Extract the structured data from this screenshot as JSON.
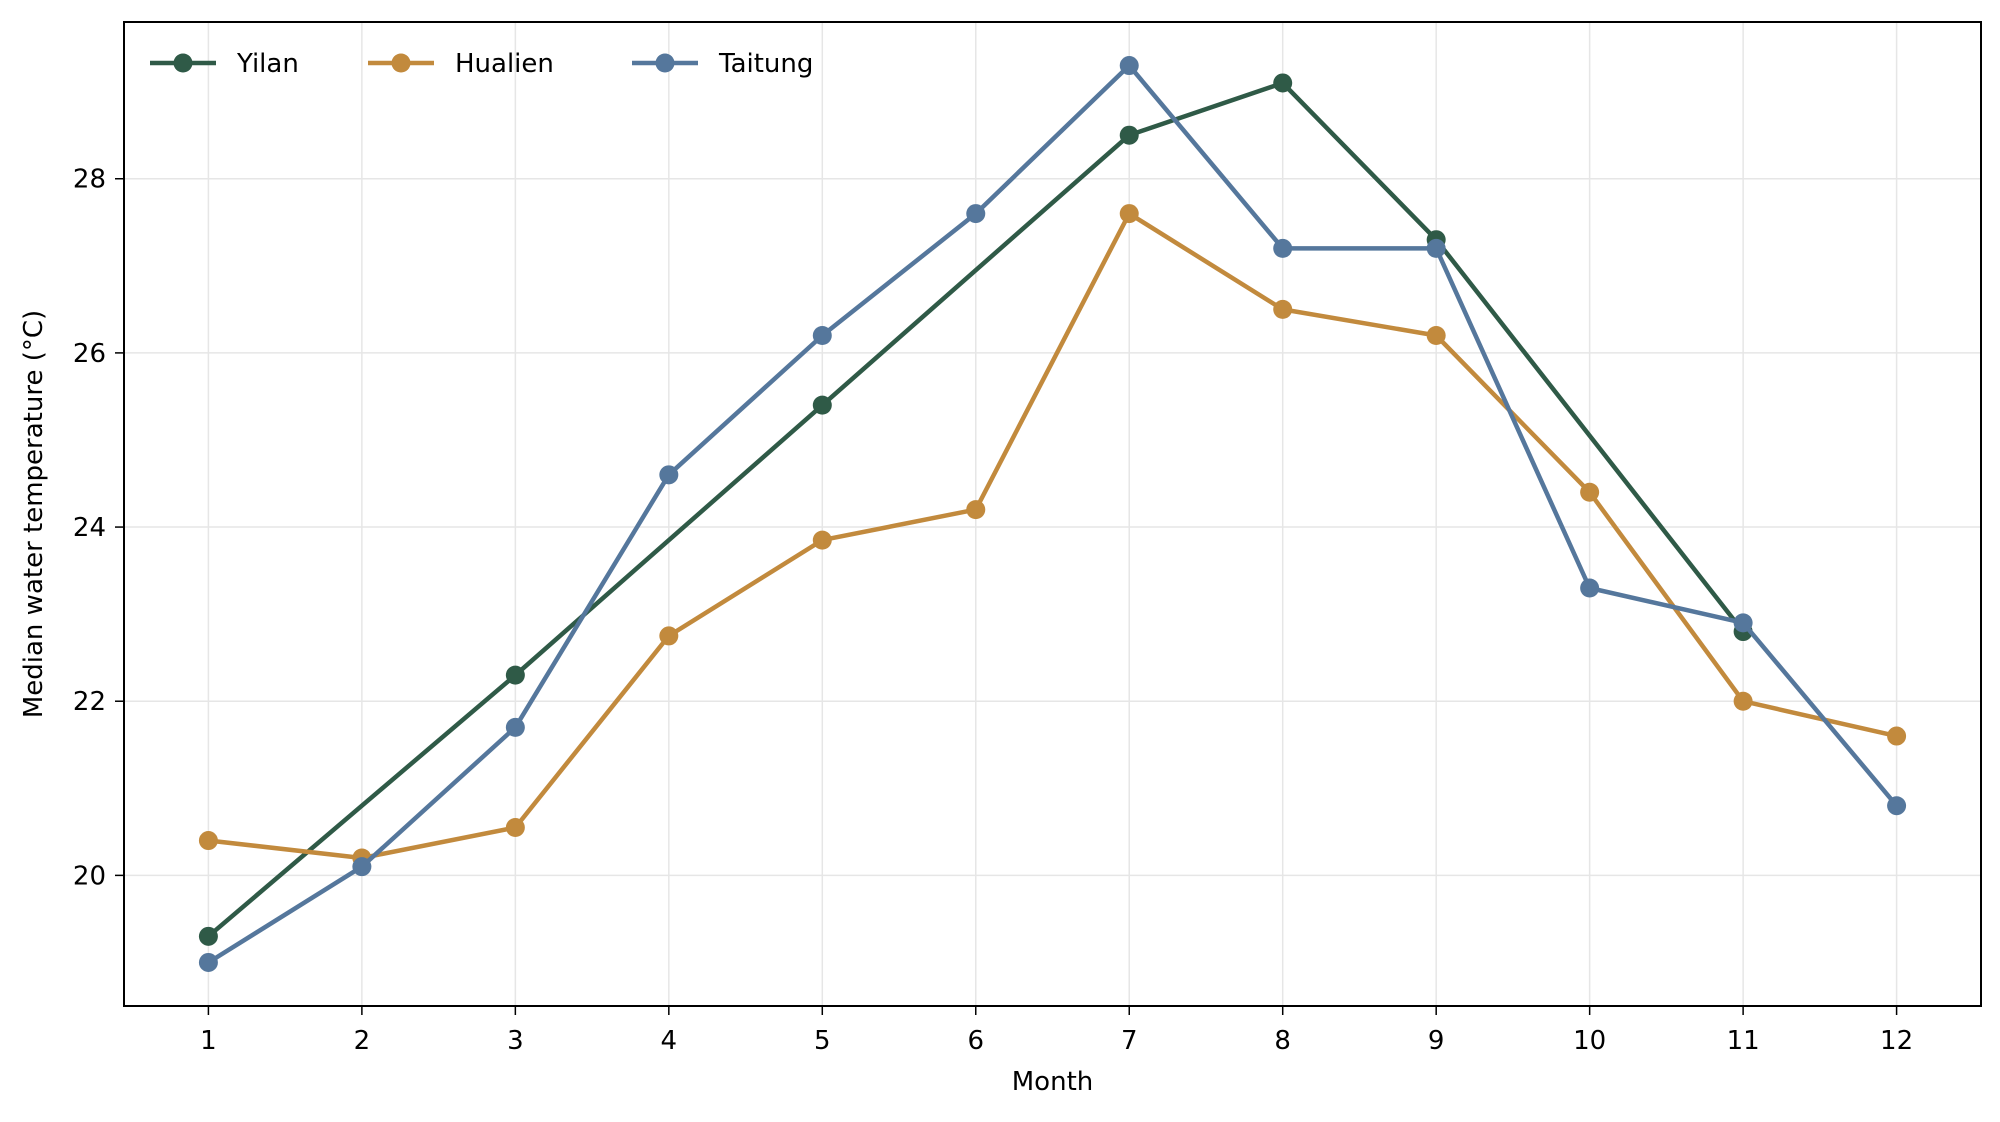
{
  "chart_data": {
    "type": "line",
    "title": "",
    "xlabel": "Month",
    "ylabel": "Median water temperature (°C)",
    "x": [
      1,
      2,
      3,
      4,
      5,
      6,
      7,
      8,
      9,
      10,
      11,
      12
    ],
    "x_ticks": [
      "1",
      "2",
      "3",
      "4",
      "5",
      "6",
      "7",
      "8",
      "9",
      "10",
      "11",
      "12"
    ],
    "xlim": [
      0.45,
      12.55
    ],
    "ylim": [
      18.5,
      29.8
    ],
    "y_ticks": [
      20,
      22,
      24,
      26,
      28
    ],
    "grid": true,
    "legend_position": "top-left",
    "series": [
      {
        "name": "Yilan",
        "color": "#2f5a47",
        "values": [
          19.3,
          null,
          22.3,
          null,
          25.4,
          null,
          28.5,
          29.1,
          27.3,
          null,
          22.8,
          null
        ]
      },
      {
        "name": "Hualien",
        "color": "#c28a3d",
        "values": [
          20.4,
          20.2,
          20.55,
          22.75,
          23.85,
          24.2,
          27.6,
          26.5,
          26.2,
          24.4,
          22.0,
          21.6
        ]
      },
      {
        "name": "Taitung",
        "color": "#55779c",
        "values": [
          19.0,
          20.1,
          21.7,
          24.6,
          26.2,
          27.6,
          29.3,
          27.2,
          27.2,
          23.3,
          22.9,
          20.8
        ]
      }
    ]
  }
}
